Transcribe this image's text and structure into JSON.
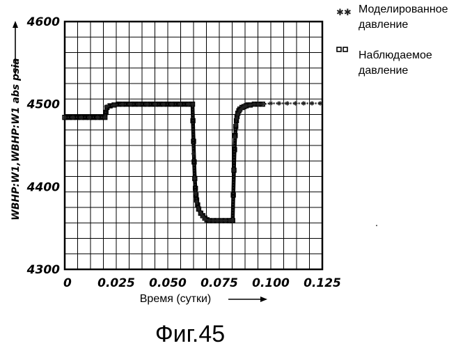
{
  "chart_data": {
    "type": "line",
    "title": "",
    "ylabel": "WBHP:W1,WBHP:W1  abs  psia",
    "xlabel": "Время (сутки)",
    "xlim": [
      0,
      0.125
    ],
    "ylim": [
      4300,
      4600
    ],
    "xticks": [
      "0",
      "0.025",
      "0.050",
      "0.075",
      "0.100",
      "0.125"
    ],
    "yticks": [
      "4300",
      "4400",
      "4500",
      "4600"
    ],
    "grid": true,
    "legend_position": "top-right",
    "series": [
      {
        "name": "Моделированное давление",
        "marker": "star",
        "color": "#222222",
        "x": [
          0,
          0.004,
          0.008,
          0.012,
          0.016,
          0.0195,
          0.0202,
          0.024,
          0.028,
          0.032,
          0.036,
          0.04,
          0.044,
          0.048,
          0.052,
          0.056,
          0.06,
          0.062,
          0.0625,
          0.063,
          0.0635,
          0.064,
          0.065,
          0.066,
          0.067,
          0.068,
          0.07,
          0.072,
          0.074,
          0.076,
          0.078,
          0.08,
          0.0815,
          0.082,
          0.0825,
          0.083,
          0.0835,
          0.084,
          0.085,
          0.086,
          0.087,
          0.088,
          0.09,
          0.092,
          0.094,
          0.096,
          0.1,
          0.104,
          0.108,
          0.112,
          0.116,
          0.12,
          0.124
        ],
        "y": [
          4484,
          4484,
          4484,
          4484,
          4484,
          4484,
          4497,
          4499,
          4500,
          4500,
          4500,
          4500,
          4500,
          4500,
          4500,
          4500,
          4500,
          4500,
          4440,
          4410,
          4392,
          4382,
          4373,
          4368,
          4364,
          4361,
          4359,
          4359,
          4359,
          4359,
          4359,
          4359,
          4359,
          4420,
          4460,
          4475,
          4483,
          4488,
          4492,
          4495,
          4497,
          4498,
          4499,
          4500,
          4500,
          4500,
          4501,
          4501,
          4501,
          4501,
          4501,
          4501,
          4501
        ]
      },
      {
        "name": "Наблюдаемое давление",
        "marker": "square",
        "color": "#000000",
        "x": [
          0,
          0.002,
          0.004,
          0.006,
          0.008,
          0.01,
          0.012,
          0.014,
          0.016,
          0.018,
          0.0195,
          0.02,
          0.0205,
          0.022,
          0.024,
          0.026,
          0.028,
          0.03,
          0.032,
          0.034,
          0.036,
          0.038,
          0.04,
          0.042,
          0.044,
          0.046,
          0.048,
          0.05,
          0.052,
          0.054,
          0.056,
          0.058,
          0.06,
          0.061,
          0.062,
          0.0622,
          0.0625,
          0.0628,
          0.0631,
          0.0634,
          0.0637,
          0.064,
          0.0645,
          0.065,
          0.066,
          0.067,
          0.068,
          0.069,
          0.07,
          0.072,
          0.074,
          0.076,
          0.078,
          0.08,
          0.081,
          0.0815,
          0.0818,
          0.0821,
          0.0824,
          0.0827,
          0.083,
          0.0833,
          0.0836,
          0.084,
          0.0845,
          0.085,
          0.086,
          0.087,
          0.088,
          0.089,
          0.09,
          0.092,
          0.094,
          0.096
        ],
        "y": [
          4484,
          4484,
          4484,
          4484,
          4484,
          4484,
          4484,
          4484,
          4484,
          4484,
          4484,
          4490,
          4496,
          4498,
          4499,
          4500,
          4500,
          4500,
          4500,
          4500,
          4500,
          4500,
          4500,
          4500,
          4500,
          4500,
          4500,
          4500,
          4500,
          4500,
          4500,
          4500,
          4500,
          4500,
          4500,
          4480,
          4455,
          4430,
          4410,
          4398,
          4390,
          4384,
          4378,
          4373,
          4368,
          4365,
          4362,
          4360,
          4359,
          4359,
          4359,
          4359,
          4359,
          4359,
          4359,
          4359,
          4390,
          4420,
          4445,
          4462,
          4473,
          4480,
          4485,
          4489,
          4492,
          4494,
          4496,
          4497,
          4498,
          4499,
          4499,
          4500,
          4500,
          4500
        ]
      }
    ]
  },
  "legend": [
    {
      "symbol": "**",
      "text_lines": [
        "Моделированное",
        "давление"
      ]
    },
    {
      "symbol": "□□",
      "text_lines": [
        "Наблюдаемое",
        "давление"
      ]
    }
  ],
  "caption": "Фиг.45"
}
